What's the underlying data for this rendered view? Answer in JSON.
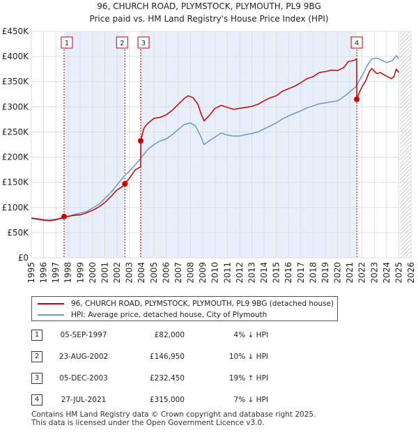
{
  "chart_data": {
    "type": "line",
    "title": "96, CHURCH ROAD, PLYMSTOCK, PLYMOUTH, PL9 9BG",
    "subtitle": "Price paid vs. HM Land Registry's House Price Index (HPI)",
    "xlabel": "",
    "ylabel": "",
    "xlim": [
      1995,
      2026
    ],
    "ylim": [
      0,
      450000
    ],
    "x_ticks": [
      "1995",
      "1996",
      "1997",
      "1998",
      "1999",
      "2000",
      "2001",
      "2002",
      "2003",
      "2004",
      "2005",
      "2006",
      "2007",
      "2008",
      "2009",
      "2010",
      "2011",
      "2012",
      "2013",
      "2014",
      "2015",
      "2016",
      "2017",
      "2018",
      "2019",
      "2020",
      "2021",
      "2022",
      "2023",
      "2024",
      "2025",
      "2026"
    ],
    "y_ticks": [
      {
        "value": 0,
        "label": "£0"
      },
      {
        "value": 50000,
        "label": "£50K"
      },
      {
        "value": 100000,
        "label": "£100K"
      },
      {
        "value": 150000,
        "label": "£150K"
      },
      {
        "value": 200000,
        "label": "£200K"
      },
      {
        "value": 250000,
        "label": "£250K"
      },
      {
        "value": 300000,
        "label": "£300K"
      },
      {
        "value": 350000,
        "label": "£350K"
      },
      {
        "value": 400000,
        "label": "£400K"
      },
      {
        "value": 450000,
        "label": "£450K"
      }
    ],
    "grid": true,
    "data_end_year": 2025.1,
    "series": [
      {
        "name": "96, CHURCH ROAD, PLYMSTOCK, PLYMOUTH, PL9 9BG (detached house)",
        "color": "#cc0000",
        "points": [
          [
            1995.0,
            79000
          ],
          [
            1995.5,
            77500
          ],
          [
            1996.0,
            75500
          ],
          [
            1996.5,
            74500
          ],
          [
            1997.0,
            76500
          ],
          [
            1997.5,
            79500
          ],
          [
            1997.67,
            82000
          ],
          [
            1998.0,
            82500
          ],
          [
            1998.5,
            84500
          ],
          [
            1999.0,
            85500
          ],
          [
            1999.5,
            89500
          ],
          [
            2000.0,
            94500
          ],
          [
            2000.5,
            101000
          ],
          [
            2001.0,
            110000
          ],
          [
            2001.5,
            122000
          ],
          [
            2002.0,
            135000
          ],
          [
            2002.4,
            141000
          ],
          [
            2002.64,
            146950
          ],
          [
            2003.0,
            158000
          ],
          [
            2003.5,
            175000
          ],
          [
            2003.92,
            181000
          ],
          [
            2003.93,
            232450
          ],
          [
            2004.2,
            258000
          ],
          [
            2004.5,
            267000
          ],
          [
            2005.0,
            277000
          ],
          [
            2005.5,
            279000
          ],
          [
            2006.0,
            284000
          ],
          [
            2006.5,
            293000
          ],
          [
            2007.0,
            305000
          ],
          [
            2007.5,
            317000
          ],
          [
            2007.8,
            322000
          ],
          [
            2008.2,
            318000
          ],
          [
            2008.6,
            305000
          ],
          [
            2008.9,
            283000
          ],
          [
            2009.1,
            272000
          ],
          [
            2009.5,
            282000
          ],
          [
            2010.0,
            297000
          ],
          [
            2010.5,
            303000
          ],
          [
            2011.0,
            299000
          ],
          [
            2011.5,
            295000
          ],
          [
            2012.0,
            297000
          ],
          [
            2012.5,
            299000
          ],
          [
            2013.0,
            301000
          ],
          [
            2013.5,
            305000
          ],
          [
            2014.0,
            312000
          ],
          [
            2014.5,
            318000
          ],
          [
            2015.0,
            322000
          ],
          [
            2015.5,
            331000
          ],
          [
            2016.0,
            336000
          ],
          [
            2016.5,
            341000
          ],
          [
            2017.0,
            348000
          ],
          [
            2017.5,
            356000
          ],
          [
            2018.0,
            360000
          ],
          [
            2018.5,
            368000
          ],
          [
            2019.0,
            370000
          ],
          [
            2019.5,
            373000
          ],
          [
            2020.0,
            372000
          ],
          [
            2020.5,
            378000
          ],
          [
            2020.9,
            390000
          ],
          [
            2021.3,
            392000
          ],
          [
            2021.56,
            395000
          ],
          [
            2021.57,
            315000
          ],
          [
            2021.8,
            330000
          ],
          [
            2022.0,
            340000
          ],
          [
            2022.3,
            352000
          ],
          [
            2022.6,
            370000
          ],
          [
            2022.8,
            376000
          ],
          [
            2023.2,
            366000
          ],
          [
            2023.5,
            368000
          ],
          [
            2024.0,
            361000
          ],
          [
            2024.4,
            356000
          ],
          [
            2024.6,
            360000
          ],
          [
            2024.8,
            375000
          ],
          [
            2025.0,
            368000
          ]
        ]
      },
      {
        "name": "HPI: Average price, detached house, City of Plymouth",
        "color": "#6699cc",
        "points": [
          [
            1995.0,
            78000
          ],
          [
            1995.5,
            76000
          ],
          [
            1996.0,
            74000
          ],
          [
            1996.5,
            73000
          ],
          [
            1997.0,
            75000
          ],
          [
            1997.5,
            78000
          ],
          [
            1998.0,
            82000
          ],
          [
            1998.5,
            86000
          ],
          [
            1999.0,
            89000
          ],
          [
            1999.5,
            92000
          ],
          [
            2000.0,
            99000
          ],
          [
            2000.5,
            106000
          ],
          [
            2001.0,
            118000
          ],
          [
            2001.5,
            130000
          ],
          [
            2002.0,
            145000
          ],
          [
            2002.5,
            160000
          ],
          [
            2003.0,
            172000
          ],
          [
            2003.5,
            185000
          ],
          [
            2004.0,
            200000
          ],
          [
            2004.5,
            215000
          ],
          [
            2005.0,
            225000
          ],
          [
            2005.5,
            232000
          ],
          [
            2006.0,
            236000
          ],
          [
            2006.5,
            245000
          ],
          [
            2007.0,
            255000
          ],
          [
            2007.5,
            265000
          ],
          [
            2008.0,
            268000
          ],
          [
            2008.4,
            262000
          ],
          [
            2008.8,
            243000
          ],
          [
            2009.1,
            225000
          ],
          [
            2009.5,
            232000
          ],
          [
            2010.0,
            240000
          ],
          [
            2010.5,
            248000
          ],
          [
            2011.0,
            244000
          ],
          [
            2011.5,
            242000
          ],
          [
            2012.0,
            242000
          ],
          [
            2012.5,
            245000
          ],
          [
            2013.0,
            247000
          ],
          [
            2013.5,
            250000
          ],
          [
            2014.0,
            256000
          ],
          [
            2014.5,
            262000
          ],
          [
            2015.0,
            268000
          ],
          [
            2015.5,
            276000
          ],
          [
            2016.0,
            282000
          ],
          [
            2016.5,
            287000
          ],
          [
            2017.0,
            292000
          ],
          [
            2017.5,
            298000
          ],
          [
            2018.0,
            302000
          ],
          [
            2018.5,
            306000
          ],
          [
            2019.0,
            308000
          ],
          [
            2019.5,
            310000
          ],
          [
            2020.0,
            312000
          ],
          [
            2020.5,
            320000
          ],
          [
            2021.0,
            330000
          ],
          [
            2021.5,
            340000
          ],
          [
            2022.0,
            362000
          ],
          [
            2022.5,
            385000
          ],
          [
            2022.8,
            395000
          ],
          [
            2023.2,
            397000
          ],
          [
            2023.6,
            393000
          ],
          [
            2024.0,
            388000
          ],
          [
            2024.5,
            392000
          ],
          [
            2024.8,
            402000
          ],
          [
            2025.0,
            395000
          ]
        ]
      }
    ],
    "sale_markers": [
      {
        "label": "1",
        "x": 1997.67,
        "value": 82000
      },
      {
        "label": "2",
        "x": 2002.64,
        "value": 146950
      },
      {
        "label": "3",
        "x": 2003.93,
        "value": 232450
      },
      {
        "label": "4",
        "x": 2021.57,
        "value": 315000
      }
    ],
    "shaded_ranges": [
      [
        1997.67,
        2002.64
      ],
      [
        2003.93,
        2021.57
      ]
    ]
  },
  "legend": {
    "property_label": "96, CHURCH ROAD, PLYMSTOCK, PLYMOUTH, PL9 9BG (detached house)",
    "hpi_label": "HPI: Average price, detached house, City of Plymouth",
    "property_color": "#cc0000",
    "hpi_color": "#6699cc"
  },
  "sales": [
    {
      "num": "1",
      "date": "05-SEP-1997",
      "price": "£82,000",
      "relation": "4% ↓ HPI"
    },
    {
      "num": "2",
      "date": "23-AUG-2002",
      "price": "£146,950",
      "relation": "10% ↓ HPI"
    },
    {
      "num": "3",
      "date": "05-DEC-2003",
      "price": "£232,450",
      "relation": "19% ↑ HPI"
    },
    {
      "num": "4",
      "date": "27-JUL-2021",
      "price": "£315,000",
      "relation": "7% ↓ HPI"
    }
  ],
  "footer": {
    "line1": "Contains HM Land Registry data © Crown copyright and database right 2025.",
    "line2": "This data is licensed under the Open Government Licence v3.0."
  }
}
